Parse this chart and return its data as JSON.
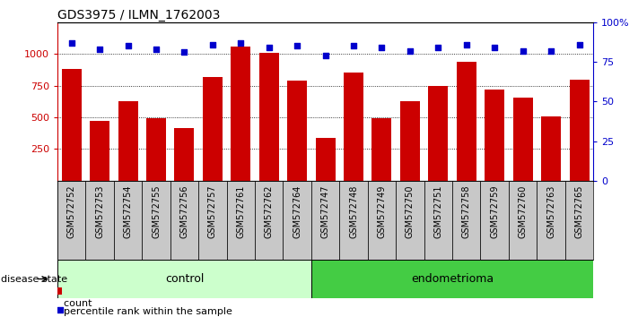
{
  "title": "GDS3975 / ILMN_1762003",
  "samples": [
    "GSM572752",
    "GSM572753",
    "GSM572754",
    "GSM572755",
    "GSM572756",
    "GSM572757",
    "GSM572761",
    "GSM572762",
    "GSM572764",
    "GSM572747",
    "GSM572748",
    "GSM572749",
    "GSM572750",
    "GSM572751",
    "GSM572758",
    "GSM572759",
    "GSM572760",
    "GSM572763",
    "GSM572765"
  ],
  "counts": [
    880,
    470,
    630,
    490,
    415,
    820,
    1055,
    1010,
    790,
    335,
    855,
    490,
    630,
    745,
    940,
    720,
    655,
    510,
    800
  ],
  "percentiles": [
    87,
    83,
    85,
    83,
    81,
    86,
    87,
    84,
    85,
    79,
    85,
    84,
    82,
    84,
    86,
    84,
    82,
    82,
    86
  ],
  "control_count": 9,
  "endometrioma_count": 10,
  "ylim_left": [
    0,
    1250
  ],
  "ylim_right": [
    0,
    100
  ],
  "yticks_left": [
    250,
    500,
    750,
    1000
  ],
  "yticks_right": [
    0,
    25,
    50,
    75,
    100
  ],
  "bar_color": "#cc0000",
  "dot_color": "#0000cc",
  "control_color": "#ccffcc",
  "endometrioma_color": "#44cc44",
  "label_bg_color": "#c8c8c8",
  "plot_bg_color": "#ffffff",
  "label_count": "count",
  "label_percentile": "percentile rank within the sample",
  "disease_state_label": "disease state",
  "control_label": "control",
  "endometrioma_label": "endometrioma",
  "title_fontsize": 10,
  "tick_fontsize": 8,
  "sample_fontsize": 7
}
